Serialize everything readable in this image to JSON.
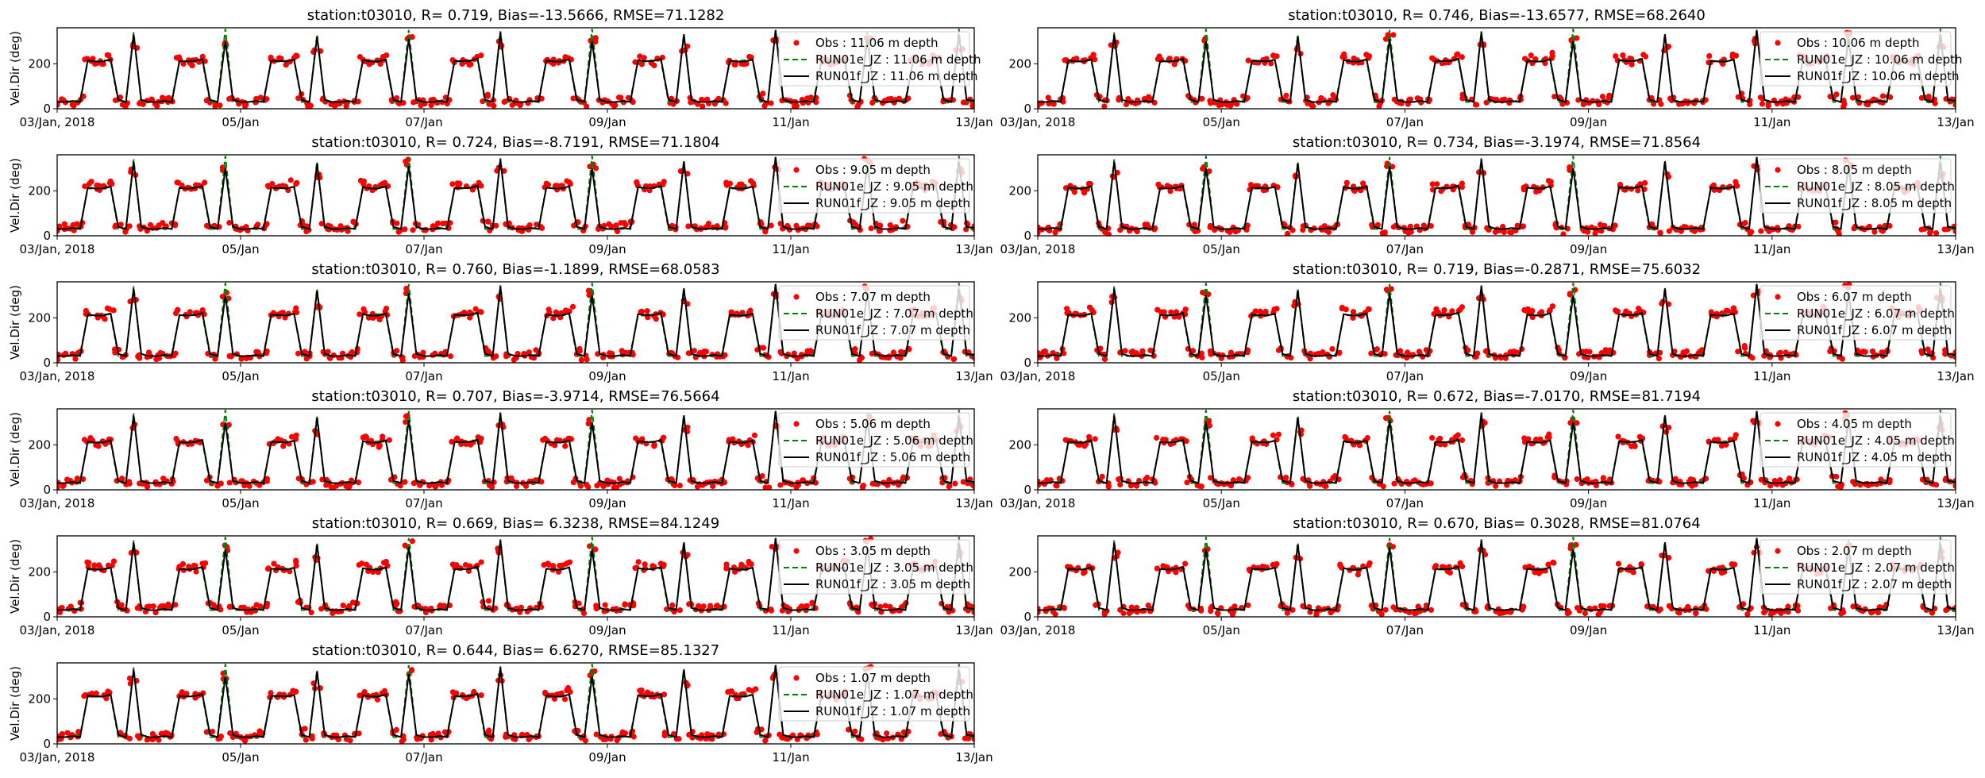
{
  "chart_data": {
    "type": "multi-panel line/scatter",
    "ylabel": "Vel.Dir (deg)",
    "ylim": [
      0,
      360
    ],
    "yticks": [
      "0",
      "200"
    ],
    "yticks_values": [
      0,
      200
    ],
    "xlim_days": [
      0,
      10
    ],
    "xticks": [
      "03/Jan, 2018",
      "05/Jan",
      "07/Jan",
      "09/Jan",
      "11/Jan",
      "13/Jan"
    ],
    "xticks_days": [
      0,
      2,
      4,
      6,
      8,
      10
    ],
    "sample_interval_hours": 2,
    "colors": {
      "obs": "#ff0000",
      "run01e": "#008000",
      "run01f": "#000000"
    },
    "series_shared": {
      "obs": [
        28,
        35,
        30,
        45,
        225,
        212,
        208,
        230,
        50,
        25,
        280,
        35,
        32,
        30,
        40,
        38,
        222,
        214,
        210,
        226,
        45,
        30,
        300,
        40,
        30,
        28,
        36,
        42,
        218,
        215,
        212,
        232,
        55,
        28,
        260,
        38,
        26,
        34,
        30,
        48,
        228,
        210,
        206,
        228,
        48,
        24,
        320,
        36,
        30,
        32,
        38,
        40,
        220,
        216,
        214,
        230,
        52,
        30,
        290,
        42,
        28,
        30,
        34,
        44,
        224,
        212,
        210,
        236,
        50,
        26,
        310,
        34,
        34,
        28,
        40,
        46,
        226,
        216,
        208,
        226,
        44,
        30,
        270,
        40,
        30,
        36,
        32,
        40,
        220,
        210,
        214,
        232,
        58,
        28,
        300,
        36,
        28,
        30,
        38,
        44,
        224,
        214,
        210,
        230,
        50,
        24,
        330,
        40,
        32,
        34,
        36,
        48,
        226,
        212,
        212,
        234,
        46,
        30,
        280,
        38,
        30
      ],
      "run01e": [
        30,
        30,
        30,
        40,
        210,
        210,
        215,
        215,
        30,
        30,
        340,
        30,
        30,
        30,
        30,
        40,
        210,
        212,
        215,
        215,
        30,
        30,
        355,
        30,
        30,
        30,
        30,
        40,
        208,
        210,
        214,
        218,
        30,
        30,
        330,
        30,
        30,
        30,
        30,
        40,
        210,
        212,
        216,
        216,
        30,
        30,
        350,
        30,
        30,
        30,
        30,
        40,
        210,
        210,
        215,
        218,
        30,
        30,
        345,
        30,
        30,
        30,
        30,
        40,
        212,
        212,
        214,
        216,
        30,
        30,
        355,
        30,
        30,
        30,
        30,
        40,
        210,
        210,
        215,
        215,
        30,
        30,
        335,
        30,
        30,
        30,
        30,
        40,
        208,
        212,
        216,
        218,
        30,
        30,
        350,
        30,
        30,
        30,
        30,
        40,
        210,
        210,
        215,
        216,
        30,
        30,
        340,
        30,
        30,
        30,
        30,
        40,
        212,
        210,
        214,
        218,
        30,
        30,
        355,
        30,
        30
      ],
      "run01f": [
        30,
        30,
        35,
        30,
        215,
        210,
        210,
        220,
        40,
        30,
        330,
        40,
        30,
        30,
        35,
        30,
        212,
        210,
        212,
        222,
        40,
        30,
        300,
        40,
        30,
        30,
        35,
        30,
        214,
        212,
        210,
        218,
        40,
        30,
        320,
        40,
        30,
        30,
        35,
        30,
        216,
        210,
        210,
        220,
        40,
        30,
        310,
        40,
        30,
        30,
        35,
        30,
        212,
        212,
        212,
        224,
        40,
        30,
        340,
        40,
        30,
        30,
        35,
        30,
        214,
        210,
        210,
        220,
        40,
        30,
        300,
        40,
        30,
        30,
        35,
        30,
        216,
        212,
        212,
        222,
        40,
        30,
        330,
        40,
        30,
        30,
        35,
        30,
        214,
        210,
        210,
        218,
        40,
        30,
        350,
        40,
        30,
        30,
        35,
        30,
        212,
        210,
        212,
        220,
        40,
        30,
        310,
        40,
        30,
        30,
        35,
        30,
        214,
        212,
        210,
        222,
        40,
        30,
        330,
        40,
        35
      ]
    },
    "panels": [
      {
        "title": "station:t03010, R= 0.719, Bias=-13.5666, RMSE=71.1282",
        "legend": [
          "Obs : 11.06 m depth",
          "RUN01e_JZ : 11.06 m depth",
          "RUN01f_JZ : 11.06 m depth"
        ]
      },
      {
        "title": "station:t03010, R= 0.746, Bias=-13.6577, RMSE=68.2640",
        "legend": [
          "Obs : 10.06 m depth",
          "RUN01e_JZ : 10.06 m depth",
          "RUN01f_JZ : 10.06 m depth"
        ]
      },
      {
        "title": "station:t03010, R= 0.724, Bias=-8.7191, RMSE=71.1804",
        "legend": [
          "Obs : 9.05 m depth",
          "RUN01e_JZ : 9.05 m depth",
          "RUN01f_JZ : 9.05 m depth"
        ]
      },
      {
        "title": "station:t03010, R= 0.734, Bias=-3.1974, RMSE=71.8564",
        "legend": [
          "Obs : 8.05 m depth",
          "RUN01e_JZ : 8.05 m depth",
          "RUN01f_JZ : 8.05 m depth"
        ]
      },
      {
        "title": "station:t03010, R= 0.760, Bias=-1.1899, RMSE=68.0583",
        "legend": [
          "Obs : 7.07 m depth",
          "RUN01e_JZ : 7.07 m depth",
          "RUN01f_JZ : 7.07 m depth"
        ]
      },
      {
        "title": "station:t03010, R= 0.719, Bias=-0.2871, RMSE=75.6032",
        "legend": [
          "Obs : 6.07 m depth",
          "RUN01e_JZ : 6.07 m depth",
          "RUN01f_JZ : 6.07 m depth"
        ]
      },
      {
        "title": "station:t03010, R= 0.707, Bias=-3.9714, RMSE=76.5664",
        "legend": [
          "Obs : 5.06 m depth",
          "RUN01e_JZ : 5.06 m depth",
          "RUN01f_JZ : 5.06 m depth"
        ]
      },
      {
        "title": "station:t03010, R= 0.672, Bias=-7.0170, RMSE=81.7194",
        "legend": [
          "Obs : 4.05 m depth",
          "RUN01e_JZ : 4.05 m depth",
          "RUN01f_JZ : 4.05 m depth"
        ]
      },
      {
        "title": "station:t03010, R= 0.669, Bias= 6.3238, RMSE=84.1249",
        "legend": [
          "Obs : 3.05 m depth",
          "RUN01e_JZ : 3.05 m depth",
          "RUN01f_JZ : 3.05 m depth"
        ]
      },
      {
        "title": "station:t03010, R= 0.670, Bias= 0.3028, RMSE=81.0764",
        "legend": [
          "Obs : 2.07 m depth",
          "RUN01e_JZ : 2.07 m depth",
          "RUN01f_JZ : 2.07 m depth"
        ]
      },
      {
        "title": "station:t03010, R= 0.644, Bias= 6.6270, RMSE=85.1327",
        "legend": [
          "Obs : 1.07 m depth",
          "RUN01e_JZ : 1.07 m depth",
          "RUN01f_JZ : 1.07 m depth"
        ]
      }
    ]
  }
}
